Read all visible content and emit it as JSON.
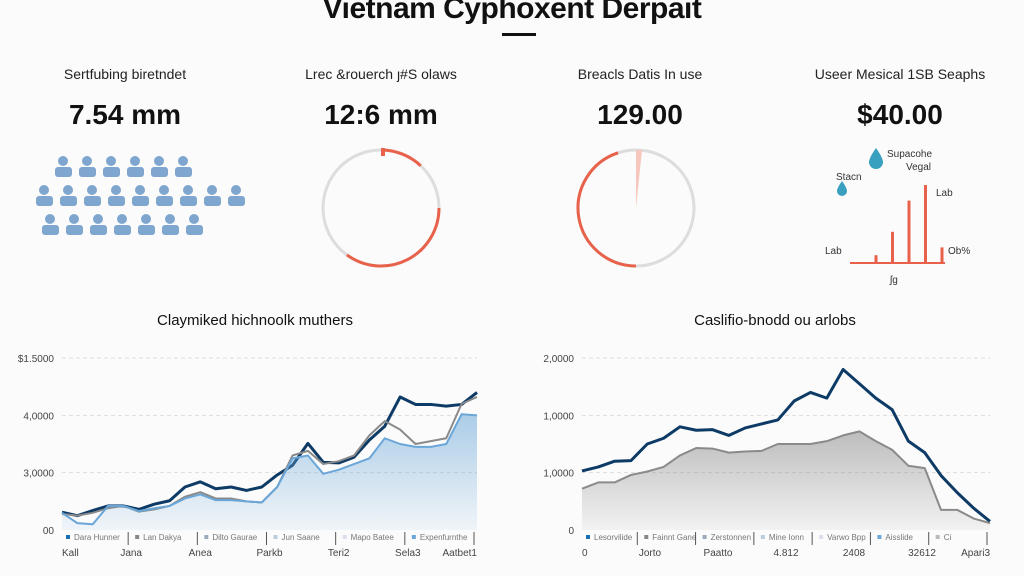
{
  "header": {
    "title": "Vietnam Cyphoxent Derpait"
  },
  "cards": [
    {
      "label": "Sertfubing biretndet",
      "value": "7.54 mm"
    },
    {
      "label": "Lrec &rouerch ȷ#S olaws",
      "value": "12:6 mm"
    },
    {
      "label": "Breacls Datis In use",
      "value": "129.00"
    },
    {
      "label": "Useer Mesical 1SB Seaphs",
      "value": "$40.00"
    }
  ],
  "gauges": [
    {
      "fraction": 0.6
    },
    {
      "fraction": 0.45
    }
  ],
  "mini_bar": {
    "labels": {
      "top": "Supacohe",
      "top2": "Vegal",
      "left_top": "Stacn",
      "right_top": "Lab",
      "left": "Lab",
      "right": "Ob%",
      "bottom": "ʃg"
    },
    "values": [
      0.1,
      0.4,
      0.8,
      1.0,
      0.2
    ],
    "color": "#e8614a",
    "drop_color": "#3aa0c0"
  },
  "chart_data": [
    {
      "type": "area",
      "title": "Claymiked hichnoolk muthers",
      "ylim": [
        0,
        3
      ],
      "ytick_labels": [
        "00",
        "3,0000",
        "4,0000",
        "$1.5000"
      ],
      "xtick_labels": [
        "Kall",
        "Jana",
        "Anea",
        "Parkb",
        "Teri2",
        "Sela3",
        "Aatbet1"
      ],
      "legend": [
        "Dara Hunner",
        "Lan Dakya",
        "Dilto Gaurae",
        "Jun Saane",
        "Mapo Batee",
        "Expenfurnthe"
      ],
      "legend_position": "bottom",
      "series": [
        {
          "name": "Dara Hunner",
          "color": "#0d3b66",
          "values": [
            0.31,
            0.25,
            0.34,
            0.42,
            0.42,
            0.36,
            0.45,
            0.51,
            0.75,
            0.84,
            0.72,
            0.75,
            0.69,
            0.75,
            0.96,
            1.13,
            1.51,
            1.18,
            1.17,
            1.27,
            1.57,
            1.81,
            2.32,
            2.19,
            2.19,
            2.16,
            2.19,
            2.4
          ]
        },
        {
          "name": "Lan Dakya",
          "color": "#8a8a8a",
          "values": [
            0.28,
            0.25,
            0.3,
            0.38,
            0.42,
            0.32,
            0.36,
            0.42,
            0.58,
            0.66,
            0.55,
            0.55,
            0.5,
            0.48,
            0.75,
            1.3,
            1.38,
            1.15,
            1.2,
            1.3,
            1.65,
            1.9,
            1.75,
            1.5,
            1.55,
            1.6,
            2.2,
            2.32
          ]
        },
        {
          "name": "Expenfurnthe",
          "color": "#6aa6d8",
          "fill": true,
          "values": [
            0.3,
            0.12,
            0.1,
            0.42,
            0.42,
            0.33,
            0.38,
            0.42,
            0.55,
            0.62,
            0.52,
            0.52,
            0.5,
            0.48,
            0.75,
            1.25,
            1.3,
            0.98,
            1.05,
            1.15,
            1.25,
            1.6,
            1.5,
            1.45,
            1.45,
            1.5,
            2.02,
            2.0
          ]
        }
      ]
    },
    {
      "type": "area",
      "title": "Caslifio-bnodd ou arlobs",
      "ylim": [
        0,
        3
      ],
      "ytick_labels": [
        "0",
        "1,0000",
        "1,0000",
        "2,0000"
      ],
      "xtick_labels": [
        "0",
        "Jorto",
        "Paatto",
        "4.812",
        "2408",
        "32612",
        "Apari3"
      ],
      "legend": [
        "Lesorvilide",
        "Fainnt Gane",
        "Zerstonnen",
        "Mine Ionn",
        "Varwo Bpp",
        "Aisslide",
        "Ci"
      ],
      "legend_position": "bottom",
      "series": [
        {
          "name": "Lesorvilide",
          "color": "#0d3b66",
          "values": [
            1.03,
            1.1,
            1.2,
            1.21,
            1.5,
            1.6,
            1.8,
            1.74,
            1.75,
            1.65,
            1.78,
            1.85,
            1.92,
            2.25,
            2.4,
            2.3,
            2.8,
            2.55,
            2.3,
            2.1,
            1.55,
            1.35,
            0.95,
            0.65,
            0.38,
            0.15
          ]
        },
        {
          "name": "Fainnt Gane",
          "color": "#8a8a8a",
          "fill": true,
          "values": [
            0.72,
            0.83,
            0.83,
            0.96,
            1.02,
            1.1,
            1.3,
            1.43,
            1.42,
            1.35,
            1.37,
            1.38,
            1.5,
            1.5,
            1.5,
            1.55,
            1.65,
            1.72,
            1.55,
            1.4,
            1.12,
            1.08,
            0.35,
            0.35,
            0.2,
            0.12
          ]
        }
      ]
    }
  ]
}
